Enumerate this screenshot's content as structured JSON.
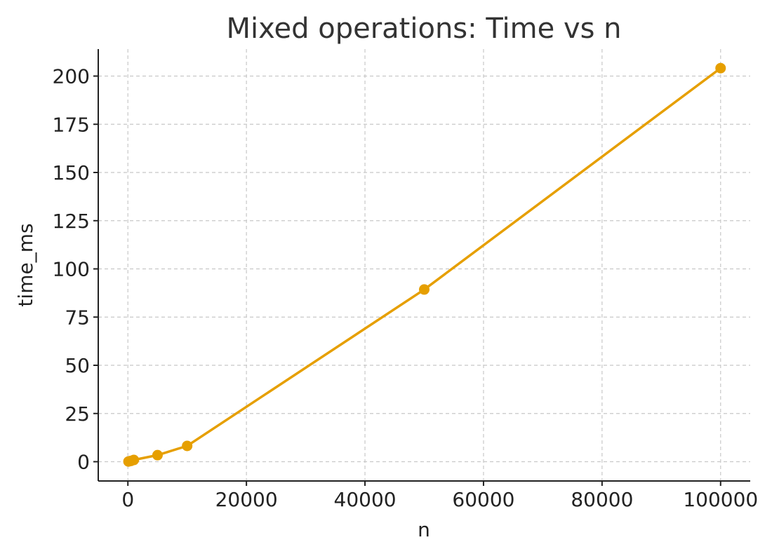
{
  "chart_data": {
    "type": "line",
    "title": "Mixed operations: Time vs n",
    "xlabel": "n",
    "ylabel": "time_ms",
    "xlim": [
      -5000,
      105000
    ],
    "ylim": [
      -10,
      214
    ],
    "x_ticks": [
      0,
      20000,
      40000,
      60000,
      80000,
      100000
    ],
    "y_ticks": [
      0,
      25,
      50,
      75,
      100,
      125,
      150,
      175,
      200
    ],
    "grid": true,
    "legend": "none",
    "color": "#e69f00",
    "series": [
      {
        "x": [
          100,
          500,
          1000,
          5000,
          10000,
          50000,
          100000
        ],
        "y": [
          0.1,
          0.4,
          0.9,
          3.4,
          8.2,
          89.3,
          204.1
        ]
      }
    ]
  }
}
